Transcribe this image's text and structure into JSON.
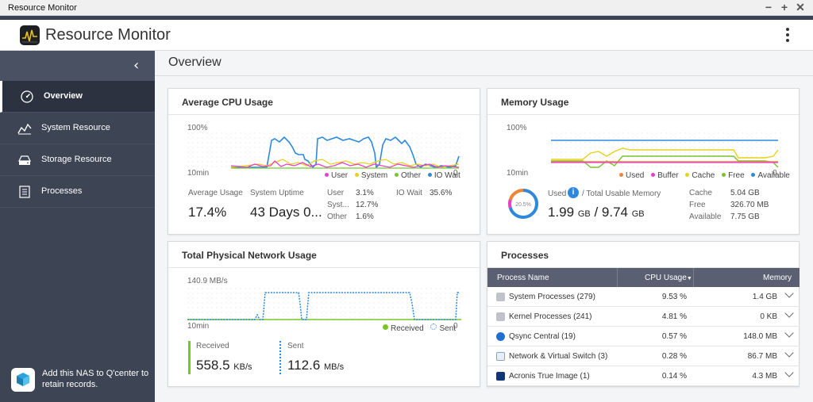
{
  "window": {
    "title": "Resource Monitor"
  },
  "app": {
    "title": "Resource Monitor"
  },
  "colors": {
    "user": "#e83fd0",
    "system": "#e6d21a",
    "other": "#76c62b",
    "io_wait": "#2d88e0",
    "used": "#f0843a",
    "buffer": "#e83fd0",
    "cache": "#e6d21a",
    "free": "#76c62b",
    "available": "#2d88e0",
    "received": "#76c62b",
    "sent": "#2d88e0"
  },
  "sidebar": {
    "items": [
      {
        "label": "Overview",
        "icon": "gauge-icon",
        "active": true
      },
      {
        "label": "System Resource",
        "icon": "chart-line-icon",
        "active": false
      },
      {
        "label": "Storage Resource",
        "icon": "storage-icon",
        "active": false
      },
      {
        "label": "Processes",
        "icon": "list-icon",
        "active": false
      }
    ],
    "qcenter_text": "Add this NAS to Q'center to retain records."
  },
  "page": {
    "title": "Overview"
  },
  "cpu": {
    "title": "Average CPU Usage",
    "y_max_label": "100%",
    "x_start_label": "10min",
    "x_end_label": "0",
    "legend": [
      "User",
      "System",
      "Other",
      "IO Wait"
    ],
    "avg_label": "Average Usage",
    "avg_value": "17.4%",
    "uptime_label": "System Uptime",
    "uptime_value": "43 Days 0...",
    "user_label": "User",
    "user_value": "3.1%",
    "system_label": "Syst...",
    "system_value": "12.7%",
    "other_label": "Other",
    "other_value": "1.6%",
    "iowait_label": "IO Wait",
    "iowait_value": "35.6%"
  },
  "memory": {
    "title": "Memory Usage",
    "y_max_label": "100%",
    "x_start_label": "10min",
    "x_end_label": "0",
    "legend": [
      "Used",
      "Buffer",
      "Cache",
      "Free",
      "Available"
    ],
    "ring_text": "20.5%",
    "used_label": "Used",
    "total_label": "/ Total Usable Memory",
    "used_value": "1.99",
    "used_unit": "GB",
    "total_value": "9.74",
    "total_unit": "GB",
    "cache_label": "Cache",
    "cache_value": "5.04 GB",
    "free_label": "Free",
    "free_value": "326.70 MB",
    "available_label": "Available",
    "available_value": "7.75 GB"
  },
  "network": {
    "title": "Total Physical Network Usage",
    "y_max_label": "140.9 MB/s",
    "x_start_label": "10min",
    "x_end_label": "0",
    "legend_received": "Received",
    "legend_sent": "Sent",
    "received_label": "Received",
    "received_value": "558.5",
    "received_unit": "KB/s",
    "sent_label": "Sent",
    "sent_value": "112.6",
    "sent_unit": "MB/s"
  },
  "processes": {
    "title": "Processes",
    "columns": {
      "name": "Process Name",
      "cpu": "CPU Usage",
      "memory": "Memory"
    },
    "rows": [
      {
        "name": "System Processes (279)",
        "cpu": "9.53 %",
        "memory": "1.4 GB",
        "icon": "gear-icon"
      },
      {
        "name": "Kernel Processes (241)",
        "cpu": "4.81 %",
        "memory": "0 KB",
        "icon": "gear-icon"
      },
      {
        "name": "Qsync Central (19)",
        "cpu": "0.57 %",
        "memory": "148.0 MB",
        "icon": "sync-icon"
      },
      {
        "name": "Network & Virtual Switch (3)",
        "cpu": "0.28 %",
        "memory": "86.7 MB",
        "icon": "network-icon"
      },
      {
        "name": "Acronis True Image (1)",
        "cpu": "0.14 %",
        "memory": "4.3 MB",
        "icon": "acronis-icon"
      }
    ]
  }
}
